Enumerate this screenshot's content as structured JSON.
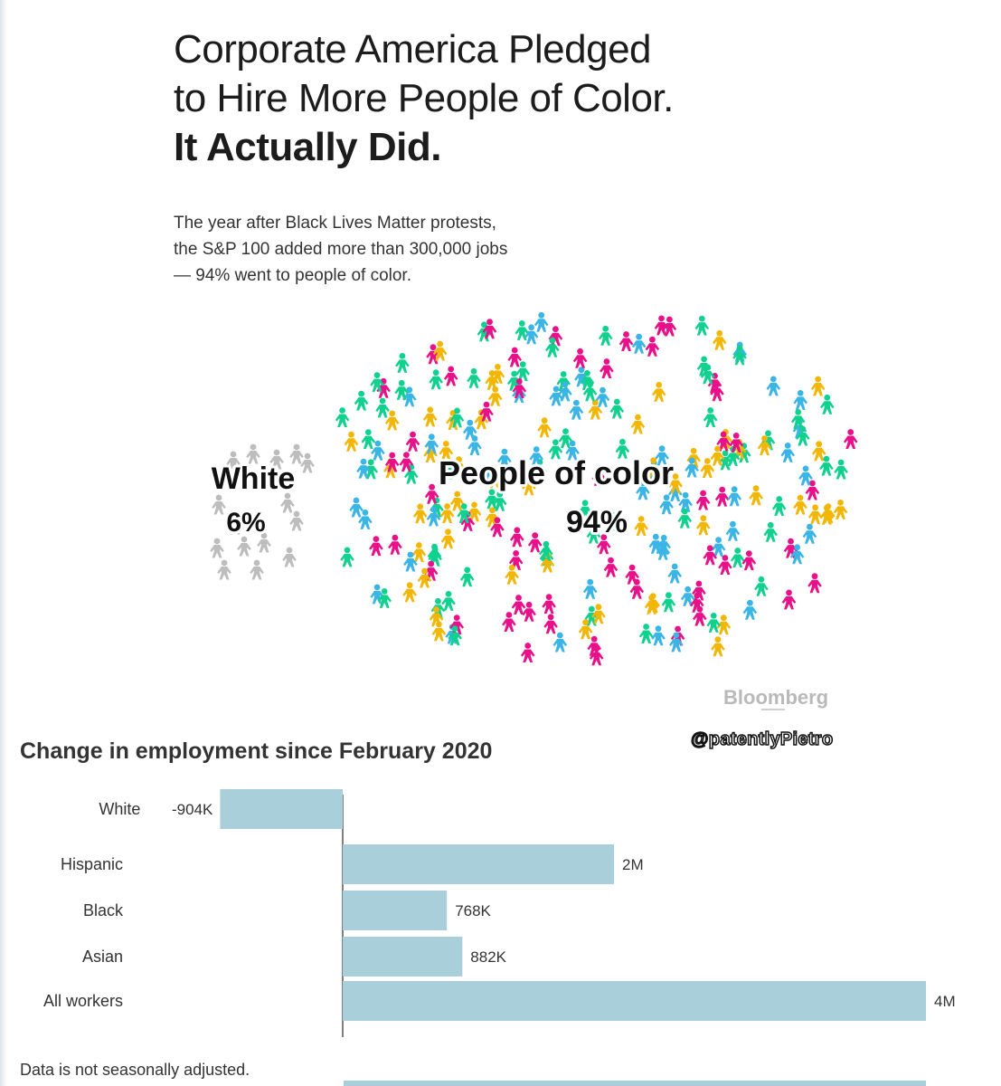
{
  "headline": {
    "line1": "Corporate America Pledged",
    "line2": "to Hire More People of Color.",
    "line3": "It Actually Did."
  },
  "subhead": {
    "line1": "The year after Black Lives Matter protests,",
    "line2": "the S&P 100 added more than 300,000 jobs",
    "line3": "— 94% went to people of color."
  },
  "pictogram": {
    "groups": [
      {
        "label": "White",
        "percent": "6%",
        "share": 0.06,
        "color": "#bdbdbd"
      },
      {
        "label": "People of color",
        "percent": "94%",
        "share": 0.94,
        "colors": [
          "#f2b705",
          "#11d18f",
          "#e8118a",
          "#3ab5e6"
        ]
      }
    ]
  },
  "source_brand": "Bloomberg",
  "watermark": "@patentlyPietro",
  "chart_data": {
    "type": "bar",
    "orientation": "horizontal",
    "title": "Change in employment since February 2020",
    "categories": [
      "White",
      "Hispanic",
      "Black",
      "Asian",
      "All workers"
    ],
    "values": [
      -904000,
      2000000,
      768000,
      882000,
      4300000
    ],
    "value_labels": [
      "-904K",
      "2M",
      "768K",
      "882K",
      "4M"
    ],
    "bar_color": "#a9cfdb",
    "footnote": "Data is not seasonally adjusted."
  }
}
